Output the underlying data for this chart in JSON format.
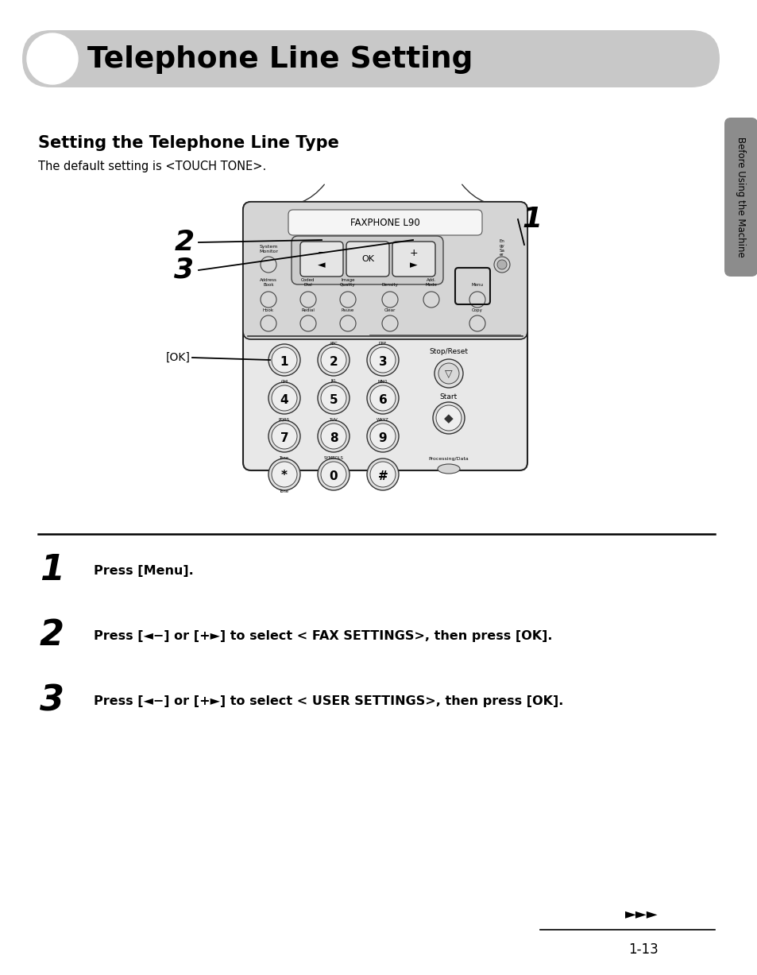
{
  "title": "Telephone Line Setting",
  "section_title": "Setting the Telephone Line Type",
  "section_subtitle": "The default setting is <TOUCH TONE>.",
  "step1_num": "1",
  "step1_text": "Press [Menu].",
  "step2_num": "2",
  "step2_text": "Press [◄−] or [+►] to select < FAX SETTINGS>, then press [OK].",
  "step3_num": "3",
  "step3_text": "Press [◄−] or [+►] to select < USER SETTINGS>, then press [OK].",
  "sidebar_text": "Before Using the Machine",
  "page_num": "1-13",
  "header_bg": "#c8c8c8",
  "sidebar_bg": "#8c8c8c",
  "bg_color": "#ffffff",
  "label1": "1",
  "label2": "2",
  "label3": "3",
  "ok_label": "[OK]",
  "faxphone_label": "FAXPHONE L90"
}
